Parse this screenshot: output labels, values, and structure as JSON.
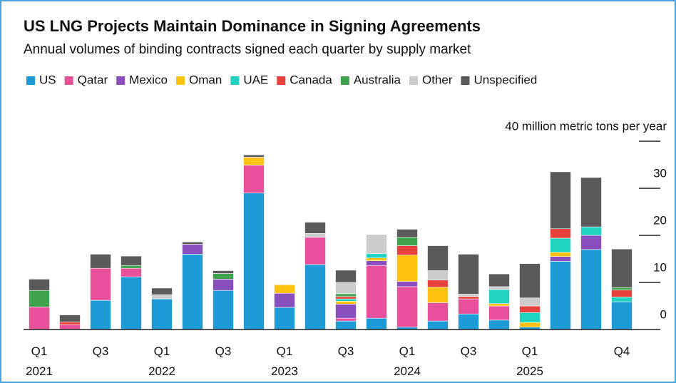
{
  "chart_data": {
    "type": "stacked_bar",
    "title": "US LNG Projects Maintain Dominance in Signing Agreements",
    "subtitle": "Annual volumes of binding contracts signed each quarter by supply market",
    "categories": [
      "Q1 2021",
      null,
      "Q3",
      null,
      "Q1 2022",
      null,
      "Q3",
      null,
      "Q1 2023",
      null,
      "Q3",
      null,
      "Q1 2024",
      null,
      "Q3",
      null,
      "Q1 2025",
      null,
      null,
      "Q4"
    ],
    "series": [
      {
        "name": "US",
        "color": "#1e9bd7",
        "values": [
          0,
          0,
          6.2,
          11.2,
          6.5,
          16,
          8.3,
          29,
          4.7,
          13.8,
          1.8,
          2.4,
          0.5,
          1.8,
          3.3,
          2,
          0.5,
          14.5,
          17,
          5.9
        ]
      },
      {
        "name": "Qatar",
        "color": "#e8509b",
        "values": [
          4.8,
          1,
          6.8,
          1.8,
          0,
          0,
          0,
          5.9,
          0,
          5.8,
          0.6,
          11.2,
          8.6,
          3.9,
          3.2,
          3,
          0,
          0,
          0,
          0
        ]
      },
      {
        "name": "Mexico",
        "color": "#8a4fbf",
        "values": [
          0,
          0,
          0,
          0,
          0,
          2.1,
          2.4,
          0,
          3,
          0,
          3,
          1,
          1.1,
          0,
          0,
          0,
          0,
          1,
          3,
          0
        ]
      },
      {
        "name": "Oman",
        "color": "#ffc20e",
        "values": [
          0,
          0,
          0,
          0,
          0,
          0,
          0,
          1.7,
          1.8,
          0,
          0.6,
          0.6,
          5.6,
          3.3,
          0,
          0.5,
          1,
          0.9,
          0,
          0
        ]
      },
      {
        "name": "UAE",
        "color": "#1fd3c0",
        "values": [
          0,
          0,
          0,
          0,
          0,
          0,
          0,
          0,
          0,
          0,
          0.5,
          0.9,
          0,
          0,
          0,
          3,
          2.1,
          3,
          1.8,
          1
        ]
      },
      {
        "name": "Canada",
        "color": "#e8403a",
        "values": [
          0,
          0.6,
          0,
          0,
          0,
          0,
          0,
          0,
          0,
          0,
          0.5,
          0,
          2,
          1.5,
          0.5,
          0,
          1.4,
          2,
          0,
          1.5
        ]
      },
      {
        "name": "Australia",
        "color": "#3fa34d",
        "values": [
          3.5,
          0,
          0,
          0.6,
          0,
          0,
          1.2,
          0,
          0,
          0,
          0.6,
          0,
          1.8,
          0,
          0,
          0,
          0,
          0,
          0,
          0.5
        ]
      },
      {
        "name": "Other",
        "color": "#cccccc",
        "values": [
          0,
          0,
          0,
          0,
          0.9,
          0,
          0,
          0,
          0,
          0.8,
          2.4,
          4.1,
          0,
          2,
          0.5,
          0.6,
          1.7,
          0,
          0,
          0
        ]
      },
      {
        "name": "Unspecified",
        "color": "#5a5a5a",
        "values": [
          2.4,
          1.5,
          3,
          2,
          1.4,
          0.5,
          0.6,
          0.5,
          0,
          2.4,
          2.6,
          0,
          1.7,
          5.3,
          8.5,
          2.7,
          7.3,
          12.1,
          10.5,
          8.2
        ]
      }
    ],
    "ylim": [
      0,
      40
    ],
    "yticks": [
      0,
      10,
      20,
      30,
      {
        "value": 40,
        "label": "40 million metric tons per year"
      }
    ]
  }
}
